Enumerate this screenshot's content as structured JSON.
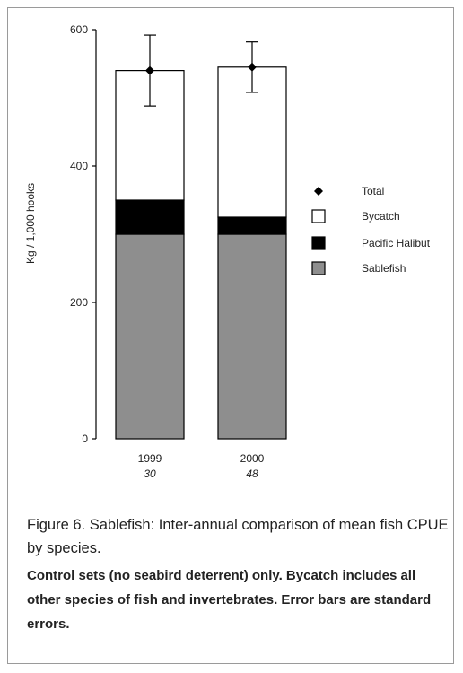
{
  "chart_data": {
    "type": "bar",
    "stacked": true,
    "categories": [
      "1999",
      "2000"
    ],
    "sample_sizes": [
      "30",
      "48"
    ],
    "ylabel": "Kg / 1,000 hooks",
    "ylim": [
      0,
      600
    ],
    "yticks": [
      0,
      200,
      400,
      600
    ],
    "series": [
      {
        "name": "Sablefish",
        "values": [
          300,
          300
        ],
        "color": "#8e8e8e"
      },
      {
        "name": "Pacific Halibut",
        "values": [
          50,
          25
        ],
        "color": "#000000"
      },
      {
        "name": "Bycatch",
        "values": [
          190,
          220
        ],
        "color": "#ffffff"
      }
    ],
    "total": {
      "name": "Total",
      "values": [
        540,
        545
      ],
      "error": [
        52,
        37
      ]
    },
    "legend": [
      "Total",
      "Bycatch",
      "Pacific Halibut",
      "Sablefish"
    ],
    "legend_position": "right"
  },
  "caption": {
    "title": "Figure 6. Sablefish: Inter-annual comparison of mean fish CPUE by species.",
    "note": "Control sets (no seabird deterrent) only. Bycatch includes all other species of fish and invertebrates. Error bars are standard errors."
  }
}
